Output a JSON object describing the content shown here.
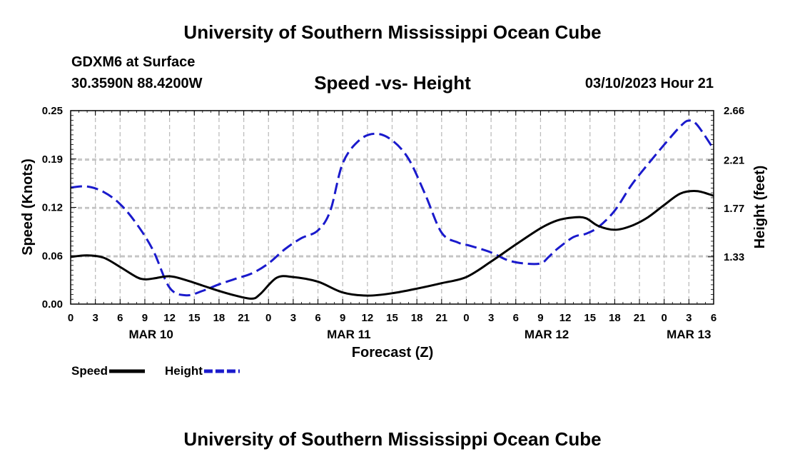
{
  "header": {
    "title": "University of Southern Mississippi Ocean Cube",
    "station": "GDXM6 at Surface",
    "coords": "30.3590N  88.4200W",
    "subtitle": "Speed -vs- Height",
    "datetime": "03/10/2023 Hour 21"
  },
  "footer": {
    "title": "University of Southern Mississippi Ocean Cube"
  },
  "chart_data": {
    "type": "line",
    "title": "Speed -vs- Height",
    "xlabel": "Forecast (Z)",
    "ylabel": "Speed (Knots)",
    "y2label": "Height (feet)",
    "x_range_hours": [
      0,
      78
    ],
    "x_ticks": [
      "0",
      "3",
      "6",
      "9",
      "12",
      "15",
      "18",
      "21",
      "0",
      "3",
      "6",
      "9",
      "12",
      "15",
      "18",
      "21",
      "0",
      "3",
      "6",
      "9",
      "12",
      "15",
      "18",
      "21",
      "0",
      "3",
      "6"
    ],
    "day_labels": [
      {
        "label": "MAR 10",
        "hour": 9.75
      },
      {
        "label": "MAR 11",
        "hour": 33.75
      },
      {
        "label": "MAR 12",
        "hour": 57.75
      },
      {
        "label": "MAR 13",
        "hour": 75
      }
    ],
    "y_left": {
      "min": 0,
      "max": 0.25,
      "ticks": [
        "0.00",
        "0.06",
        "0.12",
        "0.19",
        "0.25"
      ]
    },
    "y_right": {
      "min": 0.9,
      "max": 2.66,
      "ticks": [
        "1.33",
        "1.77",
        "2.21",
        "2.66"
      ]
    },
    "legend": [
      {
        "name": "Speed",
        "color": "#000000",
        "style": "solid"
      },
      {
        "name": "Height",
        "color": "#1a1acc",
        "style": "dashed"
      }
    ],
    "series": [
      {
        "name": "Speed",
        "axis": "left",
        "color": "#000000",
        "style": "solid",
        "x": [
          0,
          2,
          4,
          6,
          8,
          9,
          10,
          12,
          14,
          16,
          18,
          20,
          22,
          23,
          25,
          27,
          30,
          33,
          36,
          39,
          42,
          45,
          48,
          51,
          54,
          57,
          59,
          61,
          62.5,
          64,
          66,
          68,
          70,
          72,
          74,
          76,
          78
        ],
        "values": [
          0.061,
          0.063,
          0.06,
          0.048,
          0.035,
          0.032,
          0.033,
          0.036,
          0.031,
          0.024,
          0.017,
          0.011,
          0.007,
          0.013,
          0.034,
          0.035,
          0.029,
          0.015,
          0.011,
          0.014,
          0.02,
          0.027,
          0.035,
          0.055,
          0.077,
          0.098,
          0.108,
          0.112,
          0.111,
          0.101,
          0.096,
          0.101,
          0.112,
          0.128,
          0.143,
          0.146,
          0.14
        ]
      },
      {
        "name": "Height",
        "axis": "right",
        "color": "#1a1acc",
        "style": "dashed",
        "x": [
          0,
          2,
          4,
          6,
          8,
          10,
          12,
          14,
          16,
          18,
          20,
          22,
          24,
          26,
          28,
          30,
          31.5,
          33,
          35,
          37,
          39,
          41,
          43,
          45,
          47,
          48.5,
          51,
          53,
          55,
          57,
          58,
          59,
          61,
          62.5,
          64,
          66,
          68,
          70,
          72,
          74,
          75,
          76,
          78
        ],
        "values": [
          1.96,
          1.97,
          1.92,
          1.81,
          1.63,
          1.39,
          1.05,
          0.98,
          1.02,
          1.08,
          1.13,
          1.18,
          1.27,
          1.4,
          1.5,
          1.57,
          1.75,
          2.18,
          2.39,
          2.45,
          2.39,
          2.22,
          1.9,
          1.55,
          1.46,
          1.43,
          1.37,
          1.3,
          1.27,
          1.27,
          1.33,
          1.4,
          1.51,
          1.54,
          1.6,
          1.75,
          1.98,
          2.17,
          2.35,
          2.52,
          2.57,
          2.53,
          2.31
        ]
      }
    ]
  }
}
